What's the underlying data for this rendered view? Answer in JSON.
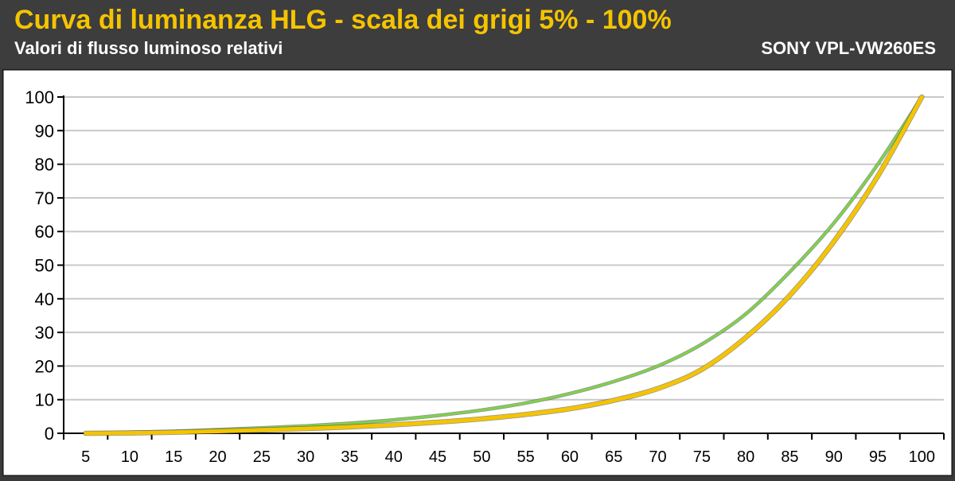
{
  "header": {
    "title": "Curva di luminanza HLG - scala dei grigi 5% - 100%",
    "subtitle": "Valori di flusso luminoso relativi",
    "model": "SONY VPL-VW260ES"
  },
  "colors": {
    "header_bg": "#3d3d3d",
    "title": "#f5c400",
    "text": "#ffffff",
    "plot_bg": "#ffffff",
    "grid": "#c8c8c8",
    "series_green": "#7fd24a",
    "series_yellow": "#f5c400"
  },
  "chart_data": {
    "type": "line",
    "x": [
      5,
      10,
      15,
      20,
      25,
      30,
      35,
      40,
      45,
      50,
      55,
      60,
      65,
      70,
      75,
      80,
      85,
      90,
      95,
      100
    ],
    "xlim": [
      5,
      100
    ],
    "ylim": [
      0,
      100
    ],
    "yticks": [
      0,
      10,
      20,
      30,
      40,
      50,
      60,
      70,
      80,
      90,
      100
    ],
    "grid": "horizontal",
    "series": [
      {
        "color": "#7fd24a",
        "values": [
          0.1,
          0.3,
          0.6,
          1.1,
          1.6,
          2.2,
          3.0,
          4.0,
          5.3,
          6.9,
          9.0,
          11.8,
          15.4,
          20.0,
          26.5,
          35.5,
          48.0,
          62.5,
          80.0,
          100
        ]
      },
      {
        "color": "#f5c400",
        "values": [
          0.0,
          0.1,
          0.3,
          0.6,
          1.0,
          1.4,
          1.9,
          2.5,
          3.3,
          4.3,
          5.6,
          7.3,
          9.8,
          13.3,
          19.0,
          28.5,
          41.0,
          57.0,
          76.5,
          100
        ]
      }
    ]
  }
}
